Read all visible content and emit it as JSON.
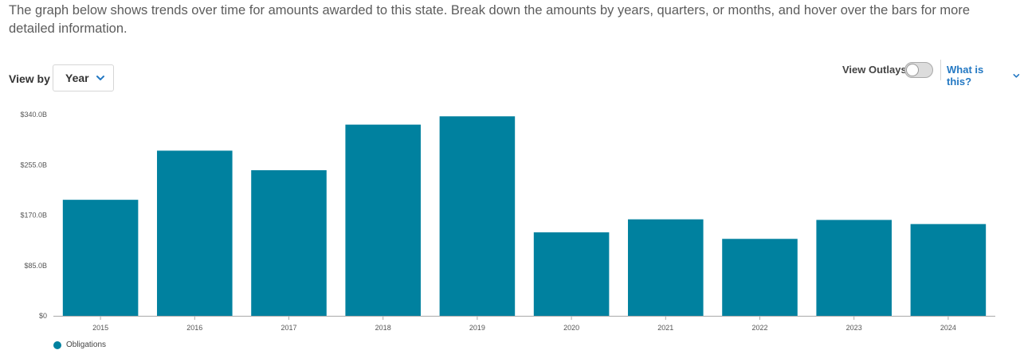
{
  "intro_text": "The graph below shows trends over time for amounts awarded to this state. Break down the amounts by years, quarters, or months, and hover over the bars for more detailed information.",
  "view_by": {
    "label": "View by",
    "selected": "Year",
    "icon": "chevron-down-icon"
  },
  "outlays": {
    "label": "View Outlays",
    "enabled": false
  },
  "what_is_this": {
    "label": "What is this?",
    "icon": "chevron-down-icon"
  },
  "colors": {
    "bar": "#00819f",
    "link": "#2378c3"
  },
  "chart_data": {
    "type": "bar",
    "categories": [
      "2015",
      "2016",
      "2017",
      "2018",
      "2019",
      "2020",
      "2021",
      "2022",
      "2023",
      "2024"
    ],
    "series": [
      {
        "name": "Obligations",
        "values": [
          196,
          279,
          246,
          323,
          337,
          141,
          163,
          130,
          162,
          155
        ]
      }
    ],
    "unit": "billion USD",
    "ylim": [
      0,
      340
    ],
    "yticks": [
      0,
      85,
      170,
      255,
      340
    ],
    "ytick_labels": [
      "$0",
      "$85.0B",
      "$170.0B",
      "$255.0B",
      "$340.0B"
    ],
    "grid": false,
    "legend_position": "bottom-left"
  }
}
